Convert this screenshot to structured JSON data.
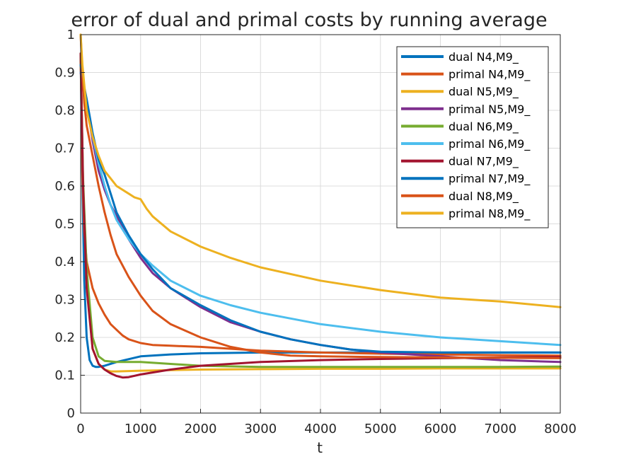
{
  "chart_data": {
    "type": "line",
    "title": "error of dual and primal costs by running average",
    "xlabel": "t",
    "ylabel": "",
    "xlim": [
      0,
      8000
    ],
    "ylim": [
      0,
      1
    ],
    "xticks": [
      0,
      1000,
      2000,
      3000,
      4000,
      5000,
      6000,
      7000,
      8000
    ],
    "yticks": [
      0,
      0.1,
      0.2,
      0.3,
      0.4,
      0.5,
      0.6,
      0.7,
      0.8,
      0.9,
      1
    ],
    "grid": true,
    "legend_position": "top-right",
    "series": [
      {
        "name": "dual N4,M9_",
        "color": "#0072BD",
        "x": [
          0,
          30,
          60,
          100,
          150,
          200,
          250,
          300,
          400,
          600,
          1000,
          1500,
          2000,
          3000,
          4000,
          5000,
          6000,
          7000,
          8000
        ],
        "y": [
          0.95,
          0.6,
          0.35,
          0.2,
          0.14,
          0.125,
          0.122,
          0.122,
          0.125,
          0.135,
          0.15,
          0.155,
          0.158,
          0.16,
          0.16,
          0.16,
          0.16,
          0.16,
          0.16
        ]
      },
      {
        "name": "primal N4,M9_",
        "color": "#D95319",
        "x": [
          0,
          30,
          60,
          100,
          200,
          300,
          400,
          500,
          600,
          700,
          800,
          1000,
          1200,
          1500,
          2000,
          3000,
          4000,
          5000,
          6000,
          7000,
          8000
        ],
        "y": [
          0.95,
          0.62,
          0.48,
          0.4,
          0.33,
          0.29,
          0.26,
          0.235,
          0.22,
          0.205,
          0.195,
          0.185,
          0.18,
          0.178,
          0.175,
          0.165,
          0.16,
          0.157,
          0.155,
          0.153,
          0.152
        ]
      },
      {
        "name": "dual N5,M9_",
        "color": "#EDB120",
        "x": [
          0,
          40,
          100,
          200,
          300,
          400,
          500,
          600,
          1000,
          2000,
          3000,
          4000,
          5000,
          6000,
          7000,
          8000
        ],
        "y": [
          0.95,
          0.6,
          0.35,
          0.17,
          0.13,
          0.115,
          0.11,
          0.11,
          0.112,
          0.115,
          0.116,
          0.117,
          0.117,
          0.118,
          0.118,
          0.118
        ]
      },
      {
        "name": "primal N5,M9_",
        "color": "#7E2F8E",
        "x": [
          0,
          50,
          100,
          200,
          300,
          400,
          500,
          600,
          800,
          1000,
          1200,
          1500,
          2000,
          2500,
          3000,
          3500,
          4000,
          4500,
          5000,
          6000,
          7000,
          8000
        ],
        "y": [
          0.9,
          0.86,
          0.82,
          0.72,
          0.64,
          0.59,
          0.55,
          0.52,
          0.46,
          0.41,
          0.37,
          0.33,
          0.28,
          0.24,
          0.215,
          0.195,
          0.18,
          0.168,
          0.16,
          0.15,
          0.14,
          0.135
        ]
      },
      {
        "name": "dual N6,M9_",
        "color": "#77AC30",
        "x": [
          0,
          40,
          100,
          200,
          300,
          400,
          600,
          1000,
          1500,
          2000,
          3000,
          4000,
          5000,
          6000,
          7000,
          8000
        ],
        "y": [
          0.95,
          0.62,
          0.38,
          0.2,
          0.15,
          0.138,
          0.135,
          0.135,
          0.13,
          0.125,
          0.122,
          0.122,
          0.122,
          0.122,
          0.122,
          0.123
        ]
      },
      {
        "name": "primal N6,M9_",
        "color": "#4DBEEE",
        "x": [
          0,
          50,
          100,
          200,
          300,
          400,
          500,
          600,
          800,
          1000,
          1200,
          1500,
          2000,
          2500,
          3000,
          4000,
          5000,
          6000,
          7000,
          8000
        ],
        "y": [
          0.9,
          0.86,
          0.82,
          0.73,
          0.66,
          0.6,
          0.55,
          0.51,
          0.46,
          0.42,
          0.39,
          0.35,
          0.31,
          0.285,
          0.265,
          0.235,
          0.215,
          0.2,
          0.19,
          0.18
        ]
      },
      {
        "name": "dual N7,M9_",
        "color": "#A2142F",
        "x": [
          0,
          40,
          100,
          200,
          300,
          400,
          500,
          600,
          700,
          800,
          1000,
          1500,
          2000,
          3000,
          4000,
          5000,
          6000,
          7000,
          8000
        ],
        "y": [
          0.95,
          0.6,
          0.33,
          0.17,
          0.13,
          0.115,
          0.105,
          0.098,
          0.094,
          0.095,
          0.102,
          0.115,
          0.125,
          0.135,
          0.14,
          0.143,
          0.145,
          0.147,
          0.148
        ]
      },
      {
        "name": "primal N7,M9_",
        "color": "#0072BD",
        "x": [
          0,
          50,
          100,
          200,
          300,
          400,
          500,
          600,
          800,
          1000,
          1200,
          1500,
          2000,
          2500,
          3000,
          3500,
          4000,
          4500,
          5000,
          6000,
          7000,
          8000
        ],
        "y": [
          0.92,
          0.87,
          0.83,
          0.74,
          0.67,
          0.63,
          0.58,
          0.53,
          0.47,
          0.42,
          0.38,
          0.33,
          0.285,
          0.245,
          0.215,
          0.195,
          0.18,
          0.168,
          0.162,
          0.16,
          0.16,
          0.16
        ]
      },
      {
        "name": "dual N8,M9_",
        "color": "#D95319",
        "x": [
          0,
          30,
          60,
          100,
          200,
          300,
          400,
          500,
          600,
          800,
          1000,
          1200,
          1500,
          2000,
          2500,
          3000,
          3500,
          4000,
          5000,
          6000,
          7000,
          8000
        ],
        "y": [
          1.0,
          0.9,
          0.82,
          0.76,
          0.68,
          0.6,
          0.53,
          0.47,
          0.42,
          0.36,
          0.31,
          0.27,
          0.235,
          0.2,
          0.175,
          0.16,
          0.152,
          0.15,
          0.148,
          0.147,
          0.146,
          0.145
        ]
      },
      {
        "name": "primal N8,M9_",
        "color": "#EDB120",
        "x": [
          0,
          30,
          100,
          200,
          300,
          400,
          500,
          600,
          800,
          900,
          1000,
          1100,
          1200,
          1500,
          2000,
          2500,
          3000,
          4000,
          5000,
          6000,
          7000,
          8000
        ],
        "y": [
          1.0,
          0.92,
          0.8,
          0.73,
          0.68,
          0.64,
          0.62,
          0.6,
          0.58,
          0.57,
          0.565,
          0.54,
          0.52,
          0.48,
          0.44,
          0.41,
          0.385,
          0.35,
          0.325,
          0.305,
          0.295,
          0.28
        ]
      }
    ]
  }
}
